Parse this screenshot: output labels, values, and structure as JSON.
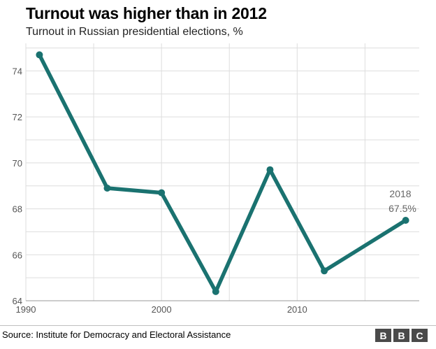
{
  "header": {
    "title": "Turnout was higher than in 2012",
    "subtitle": "Turnout in Russian presidential elections, %"
  },
  "footer": {
    "source": "Source: Institute for Democracy and Electoral Assistance",
    "logo_letters": [
      "B",
      "B",
      "C"
    ]
  },
  "colors": {
    "line": "#1a7270",
    "grid": "#dddddd",
    "axis_text": "#555555",
    "annotation_text": "#666666"
  },
  "chart_data": {
    "type": "line",
    "title": "Turnout was higher than in 2012",
    "subtitle": "Turnout in Russian presidential elections, %",
    "xlabel": "",
    "ylabel": "",
    "x": [
      1991,
      1996,
      2000,
      2004,
      2008,
      2012,
      2018
    ],
    "series": [
      {
        "name": "Turnout",
        "values": [
          74.7,
          68.9,
          68.7,
          64.4,
          69.7,
          65.3,
          67.5
        ]
      }
    ],
    "xlim": [
      1990,
      2019
    ],
    "ylim": [
      64,
      75.2
    ],
    "xticks": [
      1990,
      2000,
      2010
    ],
    "yticks": [
      64,
      66,
      68,
      70,
      72,
      74
    ],
    "grid": true,
    "annotation": {
      "year_label": "2018",
      "value_label": "67.5%"
    }
  }
}
